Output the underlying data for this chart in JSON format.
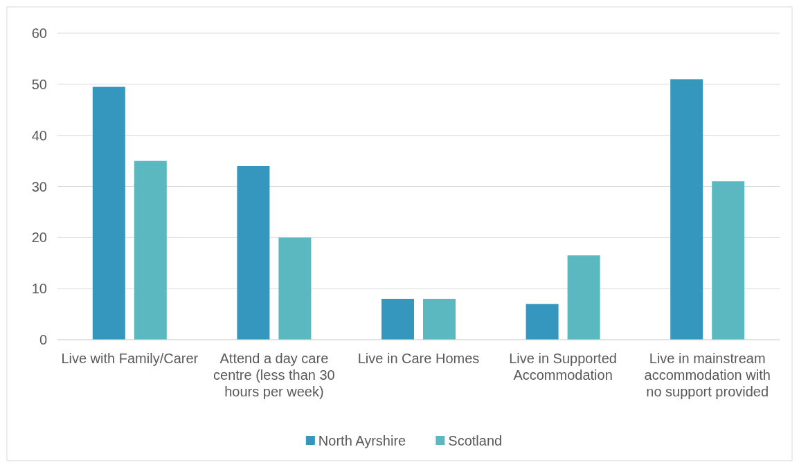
{
  "chart_data": {
    "type": "bar",
    "categories": [
      "Live with Family/Carer",
      "Attend a day care centre (less than 30 hours per week)",
      "Live in Care Homes",
      "Live in Supported Accommodation",
      "Live in mainstream accommodation with no support provided"
    ],
    "series": [
      {
        "name": "North Ayrshire",
        "color": "#3597bd",
        "values": [
          49.5,
          34,
          8,
          7,
          51
        ]
      },
      {
        "name": "Scotland",
        "color": "#5bb7c0",
        "values": [
          35,
          20,
          8,
          16.5,
          31
        ]
      }
    ],
    "ylim": [
      0,
      60
    ],
    "yticks": [
      0,
      10,
      20,
      30,
      40,
      50,
      60
    ],
    "grid": "y",
    "legend": "bottom"
  }
}
